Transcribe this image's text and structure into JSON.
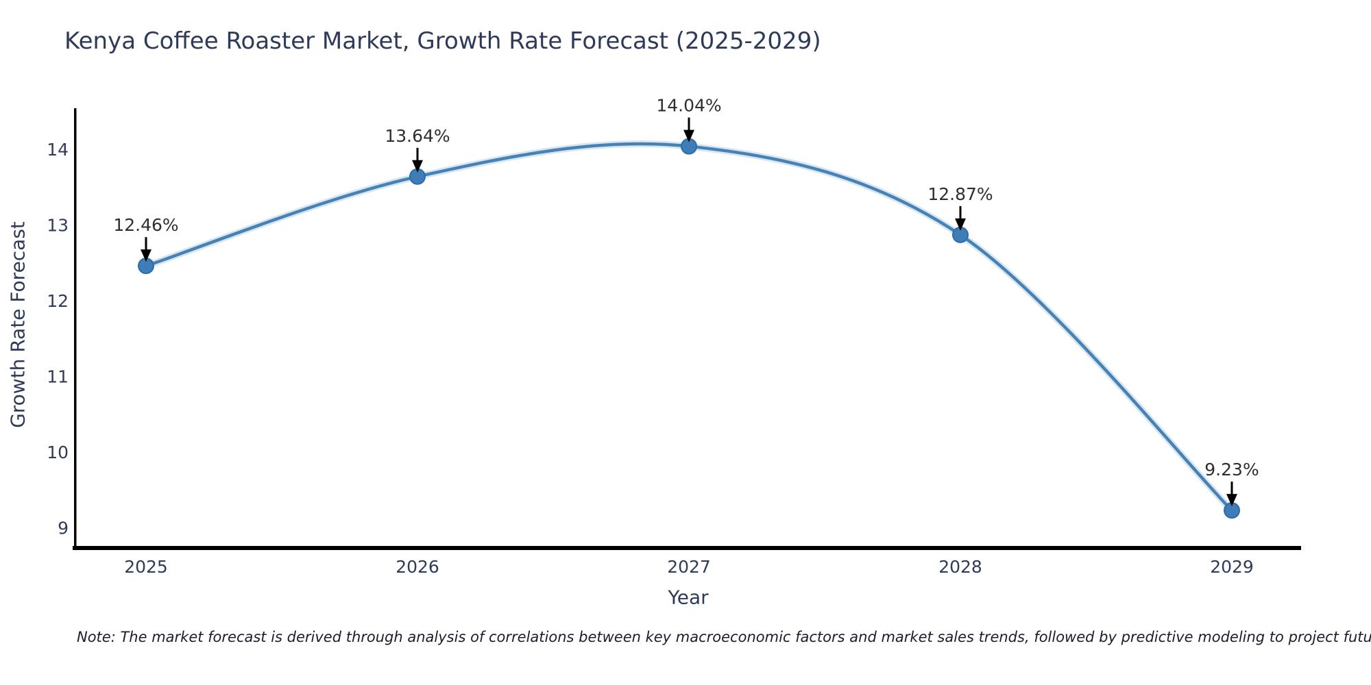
{
  "title": "Kenya Coffee Roaster Market, Growth Rate Forecast (2025-2029)",
  "note": "Note: The market forecast is derived through analysis of correlations between key macroeconomic factors and market sales trends, followed by predictive modeling to project future sales",
  "chart_data": {
    "type": "line",
    "title": "Kenya Coffee Roaster Market, Growth Rate Forecast (2025-2029)",
    "xlabel": "Year",
    "ylabel": "Growth Rate Forecast",
    "x": [
      2025,
      2026,
      2027,
      2028,
      2029
    ],
    "values": [
      12.46,
      13.64,
      14.04,
      12.87,
      9.23
    ],
    "point_labels": [
      "12.46%",
      "13.64%",
      "14.04%",
      "12.87%",
      "9.23%"
    ],
    "xticks": [
      "2025",
      "2026",
      "2027",
      "2028",
      "2029"
    ],
    "yticks": [
      9,
      10,
      11,
      12,
      13,
      14
    ],
    "ylim": [
      8.7,
      14.55
    ],
    "grid": false,
    "legend": "none",
    "smooth": true,
    "annotations": "value labels with downward black arrows above each point"
  },
  "colors": {
    "background": "#ffffff",
    "line": "#4682b4",
    "line_glow": "#c3d9ee",
    "marker_fill": "#3e7db8",
    "marker_stroke": "#2e6da4",
    "spine": "#000000",
    "axis_text": "#2f3b57",
    "title_text": "#2e3a59",
    "annotation_text": "#2e2e2e",
    "arrow": "#000000",
    "note_text": "#1b1c30"
  }
}
